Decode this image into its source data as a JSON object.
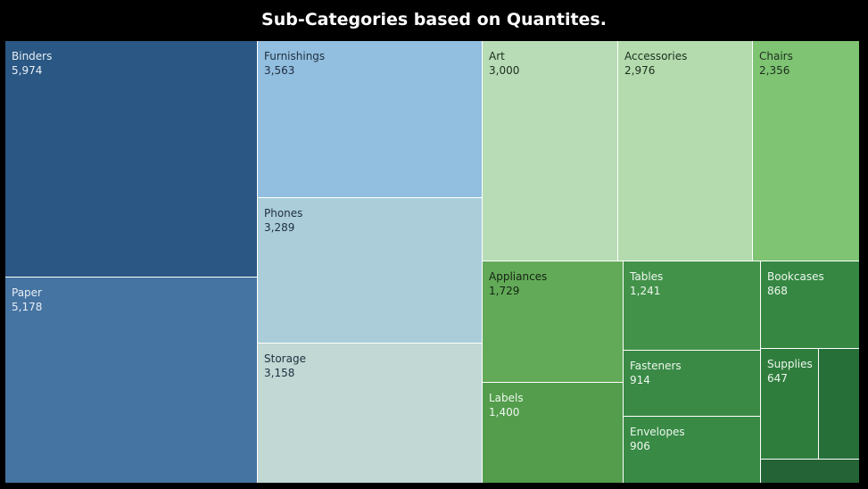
{
  "chart_data": {
    "type": "treemap",
    "title": "Sub-Categories based on Quantites.",
    "items": [
      {
        "label": "Binders",
        "value": "5,974",
        "color": "#2a5783",
        "text_color": "#e8eef5"
      },
      {
        "label": "Paper",
        "value": "5,178",
        "color": "#4574a2",
        "text_color": "#e8eef5"
      },
      {
        "label": "Furnishings",
        "value": "3,563",
        "color": "#92bedf",
        "text_color": "#1f2f3f"
      },
      {
        "label": "Phones",
        "value": "3,289",
        "color": "#abcdda",
        "text_color": "#1f2f3f"
      },
      {
        "label": "Storage",
        "value": "3,158",
        "color": "#c1d8d5",
        "text_color": "#1f2f3f"
      },
      {
        "label": "Art",
        "value": "3,000",
        "color": "#b8dcb6",
        "text_color": "#1e2e1e"
      },
      {
        "label": "Accessories",
        "value": "2,976",
        "color": "#b3dbae",
        "text_color": "#1e2e1e"
      },
      {
        "label": "Chairs",
        "value": "2,356",
        "color": "#7ec473",
        "text_color": "#1e2e1e"
      },
      {
        "label": "Appliances",
        "value": "1,729",
        "color": "#63aa58",
        "text_color": "#132413"
      },
      {
        "label": "Labels",
        "value": "1,400",
        "color": "#539d4c",
        "text_color": "#eef7ee"
      },
      {
        "label": "Tables",
        "value": "1,241",
        "color": "#43924a",
        "text_color": "#eef7ee"
      },
      {
        "label": "Fasteners",
        "value": "914",
        "color": "#3a8a46",
        "text_color": "#eef7ee"
      },
      {
        "label": "Envelopes",
        "value": "906",
        "color": "#388a45",
        "text_color": "#eef7ee"
      },
      {
        "label": "Bookcases",
        "value": "868",
        "color": "#358742",
        "text_color": "#eef7ee"
      },
      {
        "label": "Supplies",
        "value": "647",
        "color": "#2f7d3d",
        "text_color": "#eef7ee"
      },
      {
        "label": "",
        "value": "",
        "color": "#266f39",
        "text_color": "#eef7ee"
      },
      {
        "label": "",
        "value": "",
        "color": "#236335",
        "text_color": "#eef7ee"
      }
    ]
  }
}
